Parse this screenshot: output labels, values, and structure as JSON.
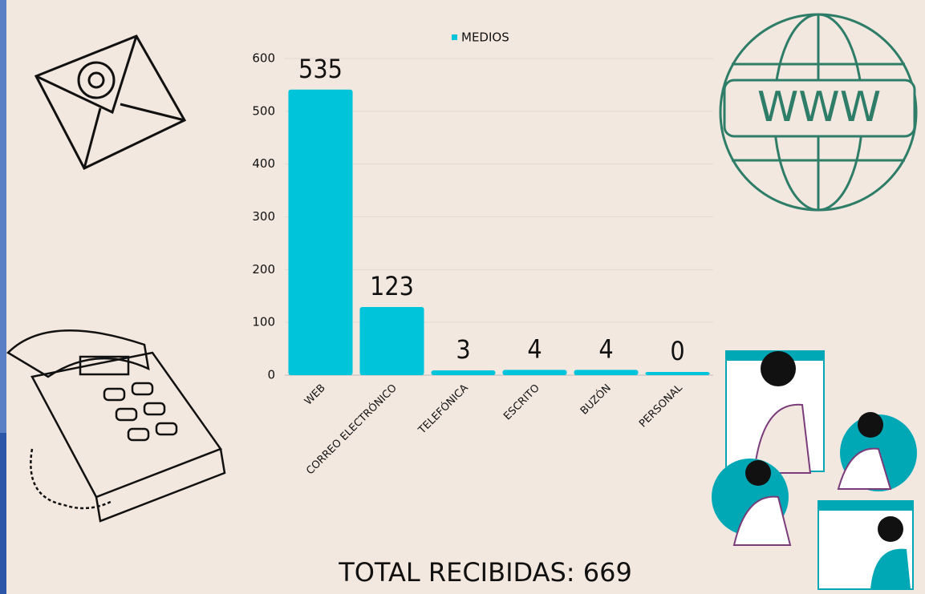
{
  "chart_data": {
    "type": "bar",
    "legend": "MEDIOS",
    "categories": [
      "WEB",
      "CORREO ELECTRÓNICO",
      "TELEFÓNICA",
      "ESCRITO",
      "BUZÓN",
      "PERSONAL"
    ],
    "values": [
      535,
      123,
      3,
      4,
      4,
      0
    ],
    "color": "#00c4da",
    "ylim": [
      0,
      600
    ],
    "yticks": [
      0,
      100,
      200,
      300,
      400,
      500,
      600
    ],
    "grid": true,
    "footer": "TOTAL RECIBIDAS: 669"
  }
}
